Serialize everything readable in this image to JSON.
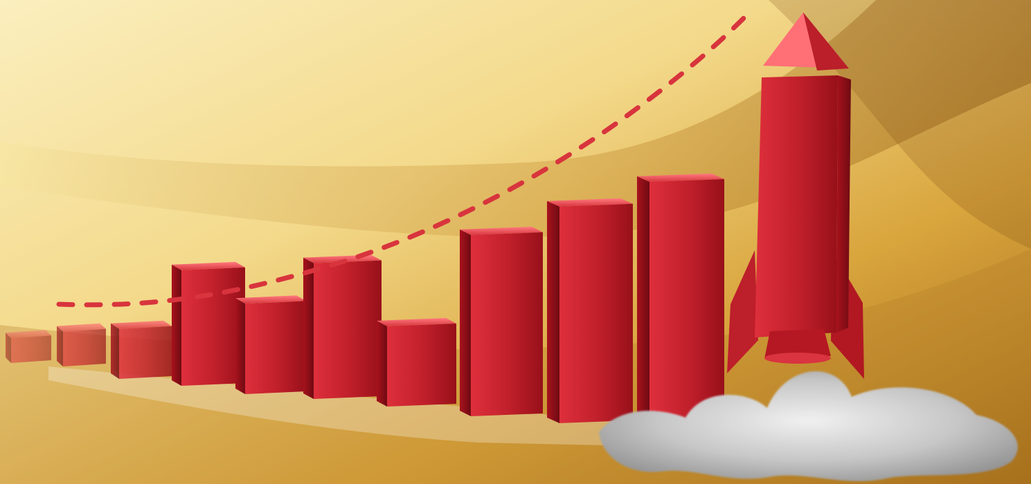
{
  "scene": {
    "colors": {
      "gold_light": "#f8e6a6",
      "gold_mid": "#e9c66e",
      "gold_dark": "#b9892d",
      "red_front": "#c91f2e",
      "red_side": "#8f1019",
      "red_top": "#ef4b55",
      "trend_line": "#d8343d",
      "smoke_light": "#e2e2e2",
      "smoke_mid": "#bcbcbc",
      "smoke_dark": "#8e8e8e"
    },
    "icons": {
      "bars": "red-3d-bar-icon",
      "trend": "dashed-growth-curve-icon",
      "rocket": "rocket-icon",
      "smoke": "exhaust-smoke-icon"
    },
    "bar_series": [
      0.12,
      0.16,
      0.22,
      0.48,
      0.38,
      0.56,
      0.34,
      0.74,
      0.88,
      1.0
    ],
    "rocket_height_relative": 1.45
  }
}
